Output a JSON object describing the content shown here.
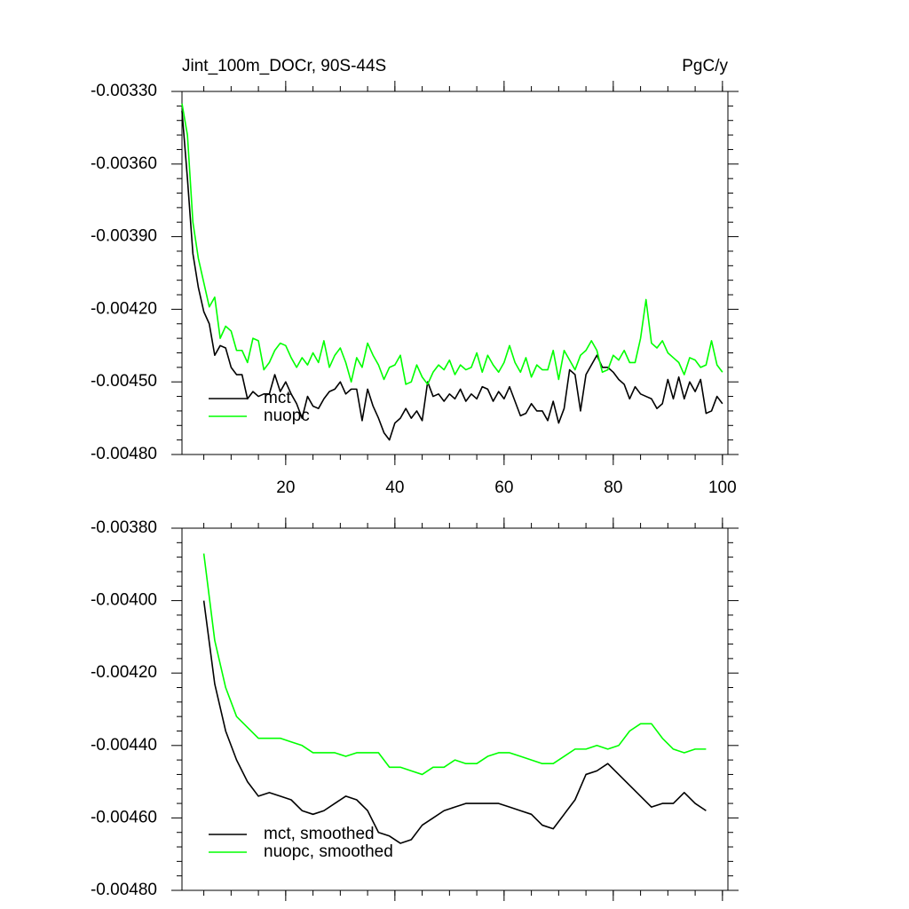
{
  "chart_data": [
    {
      "type": "line",
      "title": "Jint_100m_DOCr, 90S-44S",
      "units": "PgC/y",
      "x": [
        1,
        2,
        3,
        4,
        5,
        6,
        7,
        8,
        9,
        10,
        11,
        12,
        13,
        14,
        15,
        16,
        17,
        18,
        19,
        20,
        21,
        22,
        23,
        24,
        25,
        26,
        27,
        28,
        29,
        30,
        31,
        32,
        33,
        34,
        35,
        36,
        37,
        38,
        39,
        40,
        41,
        42,
        43,
        44,
        45,
        46,
        47,
        48,
        49,
        50,
        51,
        52,
        53,
        54,
        55,
        56,
        57,
        58,
        59,
        60,
        61,
        62,
        63,
        64,
        65,
        66,
        67,
        68,
        69,
        70,
        71,
        72,
        73,
        74,
        75,
        76,
        77,
        78,
        79,
        80,
        81,
        82,
        83,
        84,
        85,
        86,
        87,
        88,
        89,
        90,
        91,
        92,
        93,
        94,
        95,
        96,
        97,
        98,
        99,
        100
      ],
      "series": [
        {
          "name": "mct",
          "color": "#000000",
          "values": [
            -0.00338,
            -0.00366,
            -0.00397,
            -0.00411,
            -0.00421,
            -0.00426,
            -0.00439,
            -0.00435,
            -0.00436,
            -0.00444,
            -0.00447,
            -0.00447,
            -0.00457,
            -0.00454,
            -0.00456,
            -0.00455,
            -0.00455,
            -0.00447,
            -0.00454,
            -0.0045,
            -0.00455,
            -0.00459,
            -0.00465,
            -0.00456,
            -0.0046,
            -0.00461,
            -0.00457,
            -0.00454,
            -0.00453,
            -0.0045,
            -0.00455,
            -0.00453,
            -0.00453,
            -0.00466,
            -0.00453,
            -0.0046,
            -0.00465,
            -0.00471,
            -0.00474,
            -0.00467,
            -0.00465,
            -0.00461,
            -0.00465,
            -0.00462,
            -0.00466,
            -0.0045,
            -0.00456,
            -0.00455,
            -0.00458,
            -0.00455,
            -0.00457,
            -0.00453,
            -0.00458,
            -0.00455,
            -0.00457,
            -0.00452,
            -0.00453,
            -0.00458,
            -0.00454,
            -0.00457,
            -0.00452,
            -0.00458,
            -0.00464,
            -0.00463,
            -0.00459,
            -0.00462,
            -0.00462,
            -0.00466,
            -0.00458,
            -0.00467,
            -0.00461,
            -0.00445,
            -0.00447,
            -0.00462,
            -0.00447,
            -0.00443,
            -0.00439,
            -0.00444,
            -0.00444,
            -0.00446,
            -0.00449,
            -0.00451,
            -0.00457,
            -0.00452,
            -0.00455,
            -0.00456,
            -0.00457,
            -0.00461,
            -0.00459,
            -0.00449,
            -0.00457,
            -0.00448,
            -0.00457,
            -0.0045,
            -0.00454,
            -0.00449,
            -0.00463,
            -0.00462,
            -0.00456,
            -0.00459
          ]
        },
        {
          "name": "nuopc",
          "color": "#00ff00",
          "values": [
            -0.00335,
            -0.00348,
            -0.00384,
            -0.00399,
            -0.00409,
            -0.00419,
            -0.00415,
            -0.00432,
            -0.00427,
            -0.00429,
            -0.00437,
            -0.00437,
            -0.00442,
            -0.00432,
            -0.00433,
            -0.00445,
            -0.00442,
            -0.00437,
            -0.00434,
            -0.00435,
            -0.0044,
            -0.00444,
            -0.0044,
            -0.00443,
            -0.00438,
            -0.00442,
            -0.00433,
            -0.00444,
            -0.00439,
            -0.00436,
            -0.00442,
            -0.0045,
            -0.0044,
            -0.00444,
            -0.00434,
            -0.00439,
            -0.00443,
            -0.00449,
            -0.00444,
            -0.00443,
            -0.00439,
            -0.00451,
            -0.0045,
            -0.00443,
            -0.00448,
            -0.00451,
            -0.00446,
            -0.00443,
            -0.00445,
            -0.00441,
            -0.00447,
            -0.00443,
            -0.00445,
            -0.00444,
            -0.00438,
            -0.00446,
            -0.00439,
            -0.00443,
            -0.00446,
            -0.00442,
            -0.00435,
            -0.00442,
            -0.00446,
            -0.0044,
            -0.00448,
            -0.00443,
            -0.00445,
            -0.00445,
            -0.00437,
            -0.00449,
            -0.00437,
            -0.00441,
            -0.00445,
            -0.00439,
            -0.00437,
            -0.00433,
            -0.00437,
            -0.00446,
            -0.00445,
            -0.00439,
            -0.00441,
            -0.00437,
            -0.00442,
            -0.00442,
            -0.00432,
            -0.00416,
            -0.00434,
            -0.00436,
            -0.00433,
            -0.00438,
            -0.0044,
            -0.00442,
            -0.00447,
            -0.0044,
            -0.00441,
            -0.00444,
            -0.00443,
            -0.00433,
            -0.00443,
            -0.00446
          ]
        }
      ],
      "xlim": [
        1,
        101
      ],
      "xticks": [
        20,
        40,
        60,
        80,
        100
      ],
      "show_xtick_labels": true,
      "ylim": [
        -0.0048,
        -0.0033
      ],
      "yticks": [
        {
          "value": -0.0048,
          "label": "-0.00480"
        },
        {
          "value": -0.0045,
          "label": "-0.00450"
        },
        {
          "value": -0.0042,
          "label": "-0.00420"
        },
        {
          "value": -0.0039,
          "label": "-0.00390"
        },
        {
          "value": -0.0036,
          "label": "-0.00360"
        },
        {
          "value": -0.0033,
          "label": "-0.00330"
        }
      ],
      "legend": "lower left"
    },
    {
      "type": "line",
      "x": [
        5,
        7,
        9,
        11,
        13,
        15,
        17,
        19,
        21,
        23,
        25,
        27,
        29,
        31,
        33,
        35,
        37,
        39,
        41,
        43,
        45,
        47,
        49,
        51,
        53,
        55,
        57,
        59,
        61,
        63,
        65,
        67,
        69,
        71,
        73,
        75,
        77,
        79,
        81,
        83,
        85,
        87,
        89,
        91,
        93,
        95,
        97
      ],
      "series": [
        {
          "name": "mct, smoothed",
          "color": "#000000",
          "values": [
            -0.004,
            -0.00423,
            -0.00436,
            -0.00444,
            -0.0045,
            -0.00454,
            -0.00453,
            -0.00454,
            -0.00455,
            -0.00458,
            -0.00459,
            -0.00458,
            -0.00456,
            -0.00454,
            -0.00455,
            -0.00458,
            -0.00464,
            -0.00465,
            -0.00467,
            -0.00466,
            -0.00462,
            -0.0046,
            -0.00458,
            -0.00457,
            -0.00456,
            -0.00456,
            -0.00456,
            -0.00456,
            -0.00457,
            -0.00458,
            -0.00459,
            -0.00462,
            -0.00463,
            -0.00459,
            -0.00455,
            -0.00448,
            -0.00447,
            -0.00445,
            -0.00448,
            -0.00451,
            -0.00454,
            -0.00457,
            -0.00456,
            -0.00456,
            -0.00453,
            -0.00456,
            -0.00458
          ]
        },
        {
          "name": "nuopc, smoothed",
          "color": "#00ff00",
          "values": [
            -0.00387,
            -0.00411,
            -0.00424,
            -0.00432,
            -0.00435,
            -0.00438,
            -0.00438,
            -0.00438,
            -0.00439,
            -0.0044,
            -0.00442,
            -0.00442,
            -0.00442,
            -0.00443,
            -0.00442,
            -0.00442,
            -0.00442,
            -0.00446,
            -0.00446,
            -0.00447,
            -0.00448,
            -0.00446,
            -0.00446,
            -0.00444,
            -0.00445,
            -0.00445,
            -0.00443,
            -0.00442,
            -0.00442,
            -0.00443,
            -0.00444,
            -0.00445,
            -0.00445,
            -0.00443,
            -0.00441,
            -0.00441,
            -0.0044,
            -0.00441,
            -0.0044,
            -0.00436,
            -0.00434,
            -0.00434,
            -0.00438,
            -0.00441,
            -0.00442,
            -0.00441,
            -0.00441
          ]
        }
      ],
      "xlim": [
        1,
        101
      ],
      "xticks": [
        20,
        40,
        60,
        80,
        100
      ],
      "show_xtick_labels": false,
      "ylim": [
        -0.0048,
        -0.0038
      ],
      "yticks": [
        {
          "value": -0.0048,
          "label": "-0.00480"
        },
        {
          "value": -0.0046,
          "label": "-0.00460"
        },
        {
          "value": -0.0044,
          "label": "-0.00440"
        },
        {
          "value": -0.0042,
          "label": "-0.00420"
        },
        {
          "value": -0.004,
          "label": "-0.00400"
        },
        {
          "value": -0.0038,
          "label": "-0.00380"
        }
      ],
      "legend": "lower left"
    }
  ]
}
